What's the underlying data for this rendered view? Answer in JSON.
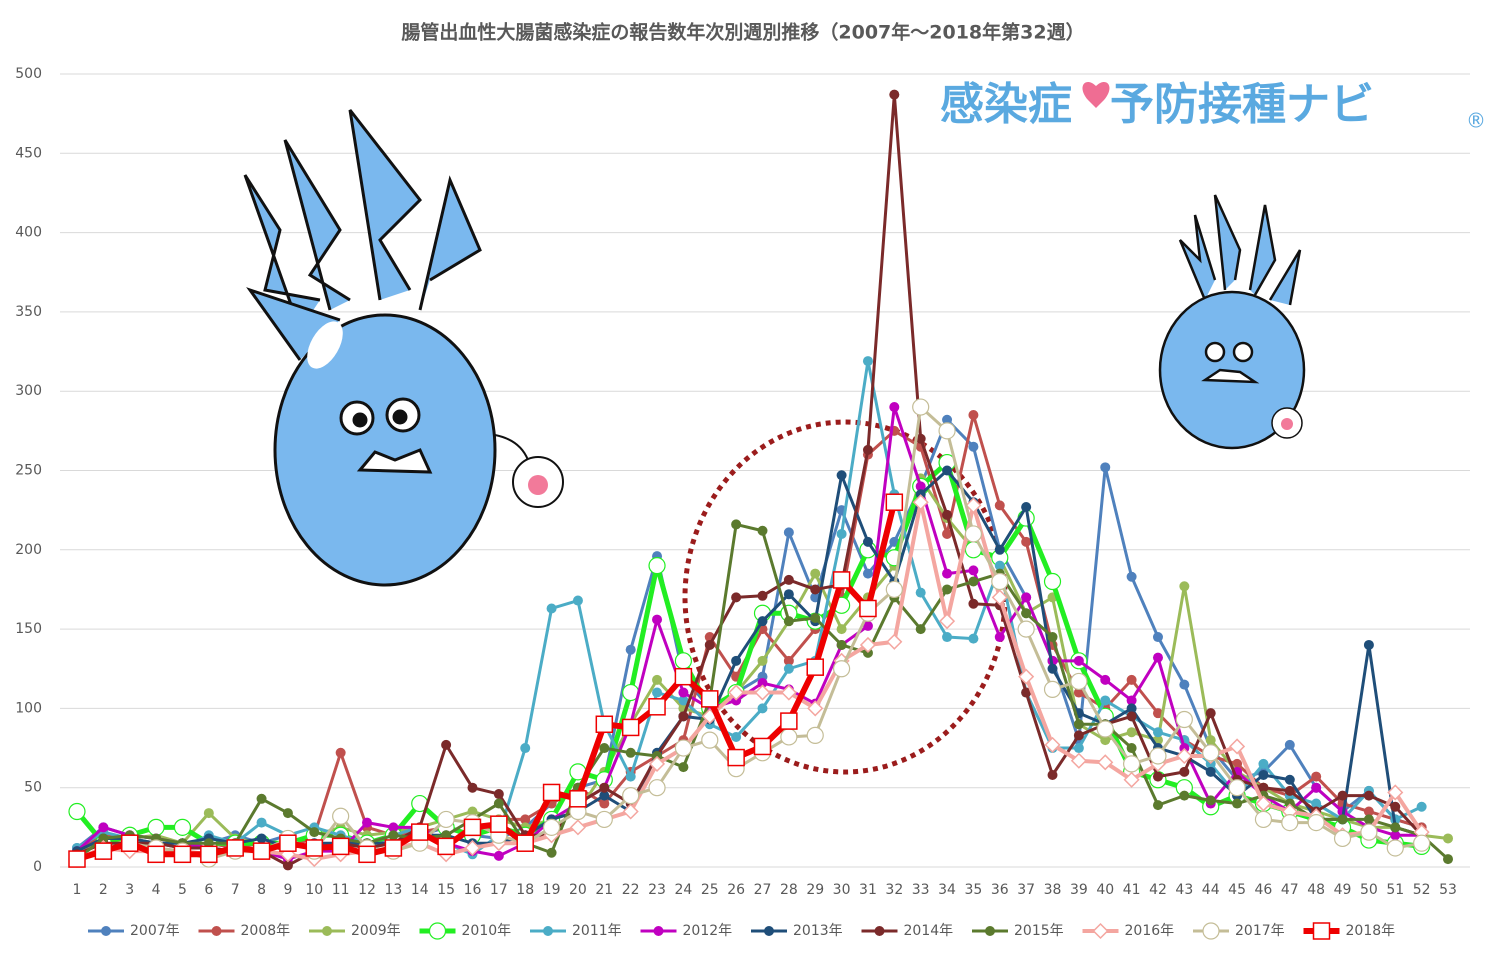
{
  "chart_data": {
    "type": "line",
    "title": "腸管出血性大腸菌感染症の報告数年次別週別推移（2007年～2018年第32週）",
    "logo": {
      "left": "感染症",
      "right": "予防接種ナビ",
      "mark": "®"
    },
    "categories": [
      "1",
      "2",
      "3",
      "4",
      "5",
      "6",
      "7",
      "8",
      "9",
      "10",
      "11",
      "12",
      "13",
      "14",
      "15",
      "16",
      "17",
      "18",
      "19",
      "20",
      "21",
      "22",
      "23",
      "24",
      "25",
      "26",
      "27",
      "28",
      "29",
      "30",
      "31",
      "32",
      "33",
      "34",
      "35",
      "36",
      "37",
      "38",
      "39",
      "40",
      "41",
      "42",
      "43",
      "44",
      "45",
      "46",
      "47",
      "48",
      "49",
      "50",
      "51",
      "52",
      "53"
    ],
    "ylim": [
      0,
      500
    ],
    "yticks": [
      0,
      50,
      100,
      150,
      200,
      250,
      300,
      350,
      400,
      450,
      500
    ],
    "grid": true,
    "legend": "bottom",
    "series": [
      {
        "name": "2007年",
        "color": "#4f81bd",
        "marker": "circle",
        "line_width": 3,
        "values": [
          12,
          25,
          20,
          18,
          15,
          15,
          20,
          15,
          20,
          10,
          12,
          15,
          18,
          20,
          25,
          20,
          18,
          25,
          40,
          50,
          55,
          137,
          196,
          120,
          100,
          110,
          120,
          211,
          170,
          225,
          185,
          205,
          240,
          282,
          265,
          200,
          170,
          130,
          80,
          252,
          183,
          145,
          115,
          75,
          55,
          60,
          77,
          50,
          35,
          48,
          30,
          25,
          null
        ]
      },
      {
        "name": "2008年",
        "color": "#c0504d",
        "marker": "circle",
        "line_width": 3,
        "values": [
          10,
          20,
          18,
          15,
          12,
          15,
          12,
          15,
          10,
          20,
          72,
          25,
          20,
          22,
          25,
          20,
          30,
          30,
          40,
          50,
          40,
          60,
          70,
          80,
          145,
          120,
          150,
          130,
          150,
          170,
          260,
          275,
          265,
          210,
          285,
          228,
          205,
          140,
          110,
          100,
          118,
          97,
          80,
          70,
          65,
          50,
          45,
          57,
          40,
          35,
          30,
          25,
          null
        ]
      },
      {
        "name": "2009年",
        "color": "#9bbb59",
        "marker": "circle",
        "line_width": 3,
        "values": [
          10,
          15,
          18,
          20,
          15,
          34,
          18,
          15,
          15,
          20,
          25,
          20,
          22,
          25,
          30,
          35,
          30,
          25,
          30,
          35,
          60,
          90,
          118,
          100,
          95,
          110,
          130,
          155,
          185,
          150,
          170,
          190,
          245,
          220,
          200,
          195,
          160,
          170,
          90,
          80,
          85,
          80,
          177,
          80,
          60,
          50,
          40,
          35,
          30,
          25,
          25,
          20,
          18
        ]
      },
      {
        "name": "2010年",
        "color": "#22ee22",
        "marker": "circle-open",
        "line_width": 5,
        "values": [
          35,
          15,
          20,
          25,
          25,
          15,
          15,
          15,
          15,
          20,
          20,
          15,
          20,
          40,
          25,
          20,
          25,
          20,
          30,
          60,
          55,
          110,
          190,
          130,
          100,
          110,
          160,
          160,
          155,
          165,
          200,
          195,
          240,
          255,
          200,
          195,
          220,
          180,
          130,
          95,
          60,
          55,
          50,
          38,
          45,
          40,
          35,
          30,
          25,
          17,
          15,
          13,
          null
        ]
      },
      {
        "name": "2011年",
        "color": "#4bacc6",
        "marker": "circle",
        "line_width": 3,
        "values": [
          12,
          22,
          18,
          15,
          12,
          20,
          15,
          28,
          20,
          25,
          20,
          15,
          20,
          25,
          15,
          8,
          20,
          75,
          163,
          168,
          90,
          57,
          110,
          105,
          90,
          82,
          100,
          125,
          130,
          210,
          319,
          235,
          173,
          145,
          144,
          190,
          110,
          75,
          75,
          105,
          95,
          85,
          80,
          65,
          45,
          65,
          45,
          40,
          30,
          48,
          30,
          38,
          null
        ]
      },
      {
        "name": "2012年",
        "color": "#c000c0",
        "marker": "circle",
        "line_width": 3,
        "values": [
          10,
          25,
          20,
          18,
          15,
          12,
          10,
          10,
          5,
          10,
          10,
          28,
          25,
          25,
          15,
          10,
          7,
          15,
          30,
          40,
          50,
          90,
          156,
          110,
          100,
          105,
          116,
          112,
          103,
          140,
          152,
          290,
          240,
          185,
          187,
          145,
          170,
          130,
          130,
          118,
          105,
          132,
          75,
          40,
          60,
          45,
          35,
          50,
          35,
          25,
          20,
          20,
          null
        ]
      },
      {
        "name": "2013年",
        "color": "#1f4e79",
        "marker": "circle",
        "line_width": 3,
        "values": [
          10,
          18,
          18,
          15,
          15,
          18,
          15,
          18,
          12,
          15,
          15,
          15,
          15,
          20,
          20,
          15,
          15,
          20,
          30,
          35,
          45,
          35,
          72,
          95,
          93,
          130,
          155,
          172,
          155,
          247,
          205,
          180,
          235,
          250,
          230,
          200,
          227,
          125,
          97,
          90,
          100,
          75,
          70,
          60,
          45,
          58,
          55,
          30,
          30,
          140,
          25,
          20,
          null
        ]
      },
      {
        "name": "2014年",
        "color": "#7b2a2a",
        "marker": "circle",
        "line_width": 3,
        "values": [
          8,
          15,
          15,
          15,
          12,
          12,
          10,
          10,
          1,
          10,
          15,
          12,
          15,
          25,
          77,
          50,
          46,
          20,
          20,
          40,
          50,
          40,
          70,
          95,
          140,
          170,
          171,
          181,
          175,
          178,
          263,
          487,
          270,
          222,
          166,
          165,
          110,
          58,
          83,
          90,
          95,
          57,
          60,
          97,
          55,
          50,
          48,
          35,
          45,
          45,
          38,
          20,
          null
        ]
      },
      {
        "name": "2015年",
        "color": "#5b7a2e",
        "marker": "circle",
        "line_width": 3,
        "values": [
          5,
          18,
          20,
          18,
          15,
          15,
          15,
          43,
          34,
          22,
          18,
          15,
          20,
          18,
          20,
          30,
          40,
          15,
          9,
          50,
          75,
          72,
          70,
          63,
          105,
          216,
          212,
          155,
          157,
          140,
          135,
          170,
          150,
          175,
          180,
          185,
          160,
          145,
          90,
          90,
          75,
          39,
          45,
          42,
          40,
          45,
          40,
          30,
          30,
          30,
          25,
          20,
          5
        ]
      },
      {
        "name": "2016年",
        "color": "#f4a6a0",
        "marker": "diamond-open",
        "line_width": 4,
        "values": [
          5,
          12,
          10,
          10,
          10,
          8,
          10,
          10,
          8,
          5,
          8,
          10,
          12,
          15,
          8,
          12,
          15,
          15,
          20,
          25,
          30,
          35,
          65,
          75,
          95,
          110,
          110,
          110,
          100,
          130,
          140,
          142,
          230,
          155,
          228,
          170,
          120,
          77,
          67,
          66,
          55,
          65,
          70,
          70,
          76,
          40,
          35,
          32,
          20,
          22,
          47,
          22,
          null
        ]
      },
      {
        "name": "2017年",
        "color": "#c4bd97",
        "marker": "circle-open",
        "line_width": 3,
        "values": [
          5,
          10,
          15,
          12,
          10,
          5,
          10,
          10,
          18,
          10,
          32,
          12,
          10,
          15,
          30,
          28,
          20,
          15,
          25,
          35,
          30,
          45,
          50,
          75,
          80,
          62,
          72,
          82,
          83,
          125,
          160,
          175,
          290,
          275,
          210,
          180,
          150,
          112,
          117,
          87,
          65,
          70,
          93,
          72,
          50,
          30,
          28,
          28,
          18,
          22,
          12,
          15,
          null
        ]
      },
      {
        "name": "2018年",
        "color": "#ee0000",
        "marker": "square-open",
        "line_width": 6,
        "values": [
          5,
          10,
          15,
          8,
          8,
          8,
          12,
          10,
          15,
          12,
          13,
          8,
          12,
          22,
          13,
          25,
          27,
          15,
          47,
          43,
          90,
          88,
          101,
          120,
          106,
          69,
          76,
          92,
          126,
          181,
          163,
          230,
          null,
          null,
          null,
          null,
          null,
          null,
          null,
          null,
          null,
          null,
          null,
          null,
          null,
          null,
          null,
          null,
          null,
          null,
          null,
          null,
          null
        ]
      }
    ]
  }
}
